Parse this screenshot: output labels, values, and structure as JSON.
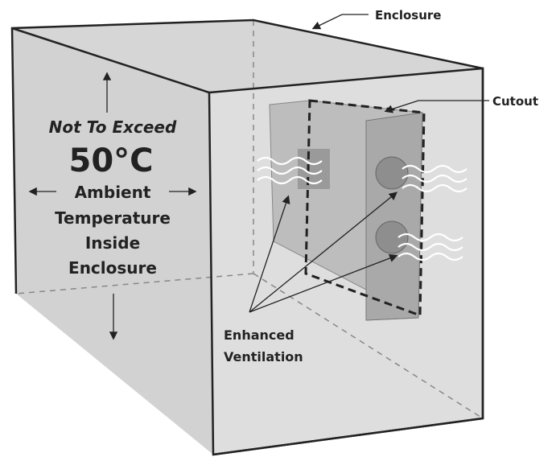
{
  "labels": {
    "enclosure": "Enclosure",
    "cutout": "Cutout"
  },
  "temperature_note": {
    "heading": "Not To Exceed",
    "value": "50°C",
    "lines": [
      "Ambient",
      "Temperature",
      "Inside",
      "Enclosure"
    ]
  },
  "ventilation_label": [
    "Enhanced",
    "Ventilation"
  ]
}
